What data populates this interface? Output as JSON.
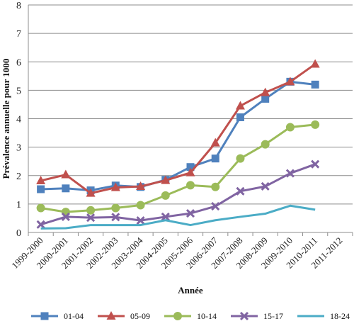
{
  "chart_data": {
    "type": "line",
    "xlabel": "Année",
    "ylabel": "Prévalence annuelle pour 1000",
    "ylim": [
      0,
      8
    ],
    "yticks": [
      0,
      1,
      2,
      3,
      4,
      5,
      6,
      7,
      8
    ],
    "grid": true,
    "legend_position": "bottom",
    "categories": [
      "1999-2000",
      "2000-2001",
      "2001-2002",
      "2002-2003",
      "2003-2004",
      "2004-2005",
      "2005-2006",
      "2006-2007",
      "2007-2008",
      "2008-2009",
      "2009-2010",
      "2010-2011",
      "2011-2012"
    ],
    "series": [
      {
        "name": "01-04",
        "color": "#4F81BD",
        "marker": "square",
        "values": [
          1.52,
          1.55,
          1.48,
          1.65,
          1.6,
          1.85,
          2.3,
          2.6,
          4.05,
          4.7,
          5.3,
          5.2,
          null
        ]
      },
      {
        "name": "05-09",
        "color": "#C0504D",
        "marker": "triangle",
        "values": [
          1.82,
          2.03,
          1.38,
          1.58,
          1.62,
          1.83,
          2.1,
          3.15,
          4.45,
          4.92,
          5.3,
          5.92,
          null
        ]
      },
      {
        "name": "10-14",
        "color": "#9BBB59",
        "marker": "circle",
        "values": [
          0.86,
          0.72,
          0.78,
          0.86,
          0.96,
          1.3,
          1.66,
          1.6,
          2.6,
          3.1,
          3.7,
          3.79,
          null
        ]
      },
      {
        "name": "15-17",
        "color": "#8064A2",
        "marker": "x",
        "values": [
          0.28,
          0.55,
          0.52,
          0.54,
          0.42,
          0.55,
          0.67,
          0.92,
          1.45,
          1.62,
          2.08,
          2.4,
          null
        ]
      },
      {
        "name": "18-24",
        "color": "#4BACC6",
        "marker": "none",
        "values": [
          0.14,
          0.15,
          0.26,
          0.26,
          0.26,
          0.43,
          0.26,
          0.43,
          0.55,
          0.66,
          0.94,
          0.8,
          null
        ]
      }
    ]
  }
}
